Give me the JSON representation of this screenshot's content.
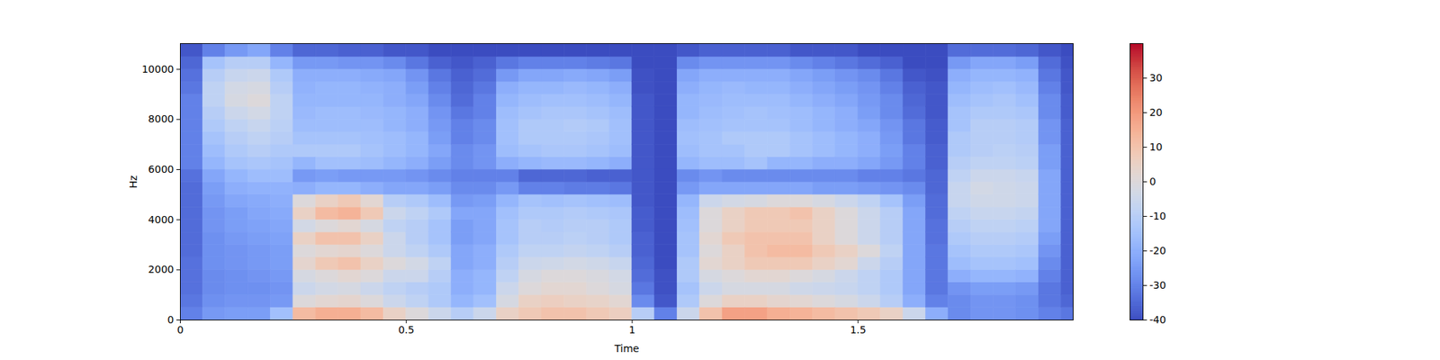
{
  "chart_data": {
    "type": "heatmap",
    "x_label": "Time",
    "y_label": "Hz",
    "color": "coolwarm",
    "xlim": [
      0,
      1.976
    ],
    "xticks": [
      0,
      0.5,
      1,
      1.5
    ],
    "ylim": [
      0,
      11025
    ],
    "yticks": [
      0,
      2000,
      4000,
      6000,
      8000,
      10000
    ],
    "x_bins": [
      0,
      0.05,
      0.1,
      0.15,
      0.2,
      0.25,
      0.3,
      0.35,
      0.4,
      0.45,
      0.5,
      0.55,
      0.6,
      0.65,
      0.7,
      0.75,
      0.8,
      0.85,
      0.9,
      0.95,
      1.0,
      1.05,
      1.1,
      1.15,
      1.2,
      1.25,
      1.3,
      1.35,
      1.4,
      1.45,
      1.5,
      1.55,
      1.6,
      1.65,
      1.7,
      1.75,
      1.8,
      1.85,
      1.9,
      1.95,
      1.976
    ],
    "y_bins": [
      0,
      500,
      1000,
      1500,
      2000,
      2500,
      3000,
      3500,
      4000,
      4500,
      5000,
      5500,
      6000,
      6500,
      7000,
      7500,
      8000,
      8500,
      9000,
      9500,
      10000,
      10500,
      11025
    ],
    "values": [
      [
        -30,
        -32,
        -33,
        -33,
        -33,
        -34,
        -34,
        -34,
        -34,
        -34,
        -34,
        -33,
        -30,
        -30,
        -30,
        -30,
        -30,
        -30,
        -32,
        -33,
        -35,
        -38
      ],
      [
        -25,
        -27,
        -28,
        -28,
        -27,
        -27,
        -27,
        -26,
        -26,
        -25,
        -24,
        -22,
        -18,
        -16,
        -14,
        -12,
        -10,
        -8,
        -8,
        -10,
        -14,
        -30
      ],
      [
        -24,
        -26,
        -27,
        -27,
        -26,
        -26,
        -25,
        -24,
        -24,
        -22,
        -20,
        -18,
        -14,
        -12,
        -10,
        -8,
        -5,
        -2,
        -3,
        -6,
        -10,
        -25
      ],
      [
        -24,
        -26,
        -27,
        -26,
        -25,
        -25,
        -24,
        -23,
        -22,
        -21,
        -19,
        -16,
        -13,
        -10,
        -8,
        -6,
        -3,
        0,
        -2,
        -5,
        -10,
        -22
      ],
      [
        -15,
        -25,
        -26,
        -25,
        -24,
        -24,
        -23,
        -22,
        -21,
        -20,
        -19,
        -16,
        -14,
        -12,
        -10,
        -9,
        -8,
        -8,
        -10,
        -12,
        -18,
        -30
      ],
      [
        12,
        0,
        -5,
        -2,
        3,
        0,
        5,
        -3,
        5,
        0,
        -20,
        -25,
        -18,
        -12,
        -14,
        -16,
        -17,
        -18,
        -19,
        -20,
        -25,
        -35
      ],
      [
        15,
        2,
        -3,
        0,
        8,
        2,
        10,
        0,
        12,
        5,
        -18,
        -24,
        -15,
        -12,
        -14,
        -16,
        -16,
        -18,
        -18,
        -20,
        -25,
        -35
      ],
      [
        15,
        3,
        -2,
        2,
        10,
        3,
        10,
        2,
        14,
        8,
        -18,
        -25,
        -15,
        -12,
        -14,
        -16,
        -16,
        -18,
        -18,
        -20,
        -26,
        -36
      ],
      [
        12,
        0,
        -5,
        0,
        5,
        0,
        5,
        -2,
        8,
        2,
        -20,
        -25,
        -16,
        -14,
        -15,
        -16,
        -17,
        -18,
        -19,
        -21,
        -26,
        -36
      ],
      [
        5,
        -5,
        -8,
        -5,
        0,
        -5,
        -5,
        -8,
        -5,
        -10,
        -22,
        -25,
        -18,
        -16,
        -16,
        -18,
        -18,
        -20,
        -20,
        -22,
        -28,
        -38
      ],
      [
        0,
        -8,
        -10,
        -5,
        -3,
        -8,
        -10,
        -10,
        -8,
        -12,
        -22,
        -26,
        -20,
        -18,
        -18,
        -20,
        -20,
        -22,
        -24,
        -26,
        -32,
        -38
      ],
      [
        -5,
        -12,
        -12,
        -10,
        -8,
        -12,
        -14,
        -14,
        -12,
        -16,
        -24,
        -28,
        -24,
        -22,
        -24,
        -25,
        -26,
        -28,
        -30,
        -32,
        -36,
        -40
      ],
      [
        -10,
        -18,
        -20,
        -20,
        -22,
        -22,
        -24,
        -24,
        -22,
        -25,
        -28,
        -30,
        -28,
        -28,
        -30,
        -30,
        -32,
        -34,
        -35,
        -36,
        -38,
        -40
      ],
      [
        -5,
        -15,
        -18,
        -18,
        -20,
        -20,
        -22,
        -22,
        -22,
        -24,
        -28,
        -30,
        -26,
        -26,
        -28,
        -28,
        -30,
        -30,
        -32,
        -34,
        -36,
        -40
      ],
      [
        5,
        -2,
        -5,
        -8,
        -10,
        -12,
        -14,
        -14,
        -15,
        -18,
        -25,
        -30,
        -20,
        -16,
        -15,
        -15,
        -16,
        -18,
        -20,
        -25,
        -32,
        -40
      ],
      [
        8,
        5,
        0,
        -2,
        -5,
        -8,
        -10,
        -10,
        -12,
        -14,
        -30,
        -35,
        -18,
        -14,
        -12,
        -12,
        -14,
        -16,
        -18,
        -22,
        -30,
        -40
      ],
      [
        10,
        6,
        2,
        0,
        -4,
        -8,
        -10,
        -11,
        -12,
        -15,
        -30,
        -35,
        -17,
        -13,
        -12,
        -12,
        -13,
        -15,
        -18,
        -22,
        -30,
        -40
      ],
      [
        10,
        5,
        2,
        0,
        -3,
        -7,
        -9,
        -10,
        -11,
        -14,
        -31,
        -35,
        -17,
        -13,
        -12,
        -11,
        -13,
        -15,
        -17,
        -21,
        -30,
        -40
      ],
      [
        8,
        4,
        0,
        -1,
        -4,
        -8,
        -10,
        -10,
        -12,
        -15,
        -31,
        -36,
        -18,
        -14,
        -13,
        -12,
        -14,
        -16,
        -18,
        -22,
        -31,
        -40
      ],
      [
        6,
        2,
        -2,
        -3,
        -6,
        -10,
        -12,
        -12,
        -13,
        -16,
        -32,
        -36,
        -20,
        -16,
        -15,
        -15,
        -16,
        -18,
        -20,
        -24,
        -32,
        -40
      ],
      [
        -10,
        -28,
        -32,
        -34,
        -35,
        -36,
        -36,
        -37,
        -37,
        -38,
        -38,
        -38,
        -38,
        -38,
        -38,
        -38,
        -38,
        -38,
        -39,
        -39,
        -40,
        -40
      ],
      [
        -30,
        -38,
        -39,
        -39,
        -40,
        -40,
        -40,
        -40,
        -40,
        -40,
        -40,
        -40,
        -40,
        -40,
        -40,
        -40,
        -40,
        -40,
        -40,
        -40,
        -40,
        -40
      ],
      [
        -5,
        -12,
        -14,
        -12,
        -12,
        -14,
        -14,
        -15,
        -16,
        -18,
        -25,
        -28,
        -18,
        -16,
        -15,
        -16,
        -18,
        -18,
        -20,
        -22,
        -28,
        -38
      ],
      [
        10,
        0,
        -5,
        -2,
        2,
        0,
        2,
        0,
        0,
        -5,
        -22,
        -26,
        -16,
        -14,
        -14,
        -15,
        -16,
        -17,
        -18,
        -20,
        -26,
        -36
      ],
      [
        18,
        5,
        -2,
        0,
        5,
        5,
        8,
        5,
        5,
        -3,
        -22,
        -28,
        -16,
        -14,
        -12,
        -14,
        -15,
        -16,
        -17,
        -20,
        -26,
        -36
      ],
      [
        18,
        5,
        -2,
        2,
        8,
        10,
        10,
        8,
        8,
        -2,
        -22,
        -28,
        -14,
        -12,
        -12,
        -14,
        -14,
        -16,
        -18,
        -20,
        -26,
        -36
      ],
      [
        15,
        3,
        -2,
        2,
        8,
        12,
        10,
        8,
        8,
        0,
        -22,
        -28,
        -18,
        -12,
        -12,
        -14,
        -15,
        -16,
        -18,
        -20,
        -26,
        -36
      ],
      [
        14,
        2,
        -4,
        0,
        8,
        12,
        10,
        8,
        10,
        0,
        -22,
        -28,
        -18,
        -14,
        -14,
        -16,
        -16,
        -18,
        -20,
        -22,
        -28,
        -38
      ],
      [
        12,
        0,
        -5,
        -2,
        5,
        8,
        5,
        5,
        5,
        -2,
        -24,
        -28,
        -20,
        -16,
        -16,
        -18,
        -18,
        -20,
        -22,
        -24,
        -30,
        -38
      ],
      [
        10,
        -2,
        -6,
        -5,
        2,
        5,
        0,
        0,
        0,
        -5,
        -24,
        -28,
        -20,
        -18,
        -18,
        -20,
        -20,
        -22,
        -24,
        -26,
        -32,
        -38
      ],
      [
        8,
        -5,
        -8,
        -8,
        -5,
        0,
        -5,
        -5,
        -5,
        -8,
        -25,
        -30,
        -22,
        -20,
        -20,
        -22,
        -24,
        -25,
        -26,
        -28,
        -34,
        -40
      ],
      [
        5,
        -10,
        -12,
        -12,
        -10,
        -8,
        -10,
        -10,
        -10,
        -14,
        -26,
        -30,
        -25,
        -24,
        -25,
        -26,
        -28,
        -28,
        -30,
        -32,
        -36,
        -40
      ],
      [
        -5,
        -20,
        -22,
        -22,
        -22,
        -22,
        -22,
        -22,
        -22,
        -24,
        -28,
        -32,
        -30,
        -30,
        -32,
        -32,
        -34,
        -35,
        -36,
        -38,
        -40,
        -40
      ],
      [
        -20,
        -30,
        -32,
        -32,
        -32,
        -32,
        -33,
        -33,
        -34,
        -34,
        -35,
        -35,
        -36,
        -36,
        -37,
        -37,
        -38,
        -38,
        -38,
        -39,
        -40,
        -40
      ],
      [
        -28,
        -28,
        -26,
        -20,
        -16,
        -14,
        -12,
        -10,
        -8,
        -6,
        -6,
        -8,
        -10,
        -12,
        -12,
        -14,
        -14,
        -16,
        -18,
        -20,
        -25,
        -34
      ],
      [
        -26,
        -26,
        -24,
        -18,
        -14,
        -12,
        -10,
        -8,
        -6,
        -4,
        -3,
        -5,
        -8,
        -10,
        -10,
        -10,
        -12,
        -14,
        -16,
        -18,
        -22,
        -34
      ],
      [
        -26,
        -26,
        -24,
        -18,
        -14,
        -12,
        -10,
        -8,
        -6,
        -4,
        -4,
        -5,
        -8,
        -9,
        -10,
        -10,
        -12,
        -13,
        -15,
        -18,
        -22,
        -34
      ],
      [
        -27,
        -27,
        -25,
        -19,
        -15,
        -13,
        -11,
        -9,
        -7,
        -5,
        -5,
        -6,
        -9,
        -10,
        -11,
        -11,
        -13,
        -15,
        -17,
        -19,
        -24,
        -35
      ],
      [
        -30,
        -32,
        -32,
        -30,
        -28,
        -26,
        -24,
        -22,
        -22,
        -22,
        -22,
        -22,
        -24,
        -24,
        -26,
        -26,
        -28,
        -28,
        -30,
        -32,
        -34,
        -38
      ],
      [
        -32,
        -35,
        -36,
        -36,
        -36,
        -36,
        -36,
        -36,
        -36,
        -36,
        -36,
        -36,
        -36,
        -36,
        -36,
        -36,
        -37,
        -37,
        -38,
        -38,
        -39,
        -40
      ]
    ],
    "colorbar": {
      "range": [
        -40,
        40
      ],
      "ticks": [
        -40,
        -30,
        -20,
        -10,
        0,
        10,
        20,
        30
      ]
    }
  }
}
